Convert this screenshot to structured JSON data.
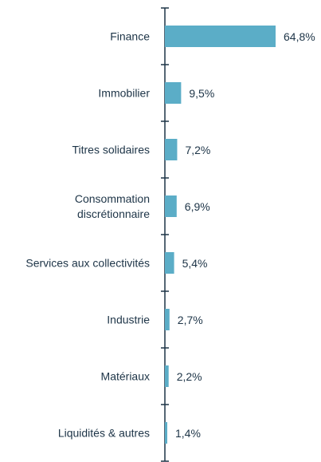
{
  "chart_data": {
    "type": "bar",
    "orientation": "horizontal",
    "color": "#5badc7",
    "categories": [
      "Finance",
      "Immobilier",
      "Titres solidaires",
      "Consommation discrétionnaire",
      "Services aux collectivités",
      "Industrie",
      "Matériaux",
      "Liquidités & autres"
    ],
    "values": [
      64.8,
      9.5,
      7.2,
      6.9,
      5.4,
      2.7,
      2.2,
      1.4
    ],
    "value_labels": [
      "64,8%",
      "9,5%",
      "7,2%",
      "6,9%",
      "5,4%",
      "2,7%",
      "2,2%",
      "1,4%"
    ]
  }
}
